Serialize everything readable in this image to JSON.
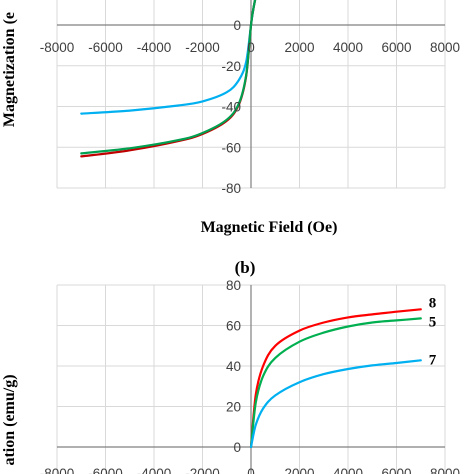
{
  "chart_data": [
    {
      "type": "line",
      "xlabel": "Magnetic Field (Oe)",
      "ylabel": "Magnetization (e",
      "xlim": [
        -8000,
        8000
      ],
      "ylim": [
        -80,
        10
      ],
      "x_ticks": [
        "-8000",
        "-6000",
        "-4000",
        "-2000",
        "0",
        "2000",
        "4000",
        "6000",
        "8000"
      ],
      "y_ticks": [
        "0",
        "-20",
        "-40",
        "-60",
        "-80"
      ],
      "y_tick_values": [
        0,
        -20,
        -40,
        -60,
        -80
      ],
      "grid": true,
      "series": [
        {
          "color": "#00b0f0",
          "x": [
            -7000,
            -5000,
            -3000,
            -2000,
            -1000,
            -500,
            -200,
            0,
            100,
            200
          ],
          "y": [
            -43.5,
            -42,
            -39.5,
            -37.5,
            -33,
            -27,
            -18,
            0,
            8,
            14
          ]
        },
        {
          "color": "#c00000",
          "x": [
            -7000,
            -5000,
            -3000,
            -2000,
            -1000,
            -500,
            -200,
            0,
            100,
            200
          ],
          "y": [
            -64.5,
            -61.5,
            -57,
            -53.5,
            -47,
            -39,
            -25,
            0,
            8,
            14
          ]
        },
        {
          "color": "#00a050",
          "x": [
            -7000,
            -5000,
            -3000,
            -2000,
            -1000,
            -500,
            -200,
            0,
            100,
            200
          ],
          "y": [
            -63,
            -60.5,
            -56.5,
            -53,
            -46.5,
            -38.5,
            -24.5,
            0,
            8,
            14
          ]
        }
      ]
    },
    {
      "type": "line",
      "title": "(b)",
      "ylabel": "ation (emu/g)",
      "xlim": [
        -8000,
        8000
      ],
      "ylim": [
        -10,
        80
      ],
      "x_ticks": [
        "-8000",
        "-6000",
        "-4000",
        "-2000",
        "0",
        "2000",
        "4000",
        "6000",
        "8000"
      ],
      "y_ticks": [
        "80",
        "60",
        "40",
        "20",
        "0"
      ],
      "y_tick_values": [
        80,
        60,
        40,
        20,
        0
      ],
      "grid": true,
      "series": [
        {
          "name": "8",
          "color": "#ff0000",
          "x": [
            0,
            200,
            500,
            1000,
            2000,
            3000,
            4000,
            5000,
            6000,
            7000
          ],
          "y": [
            0,
            26,
            40,
            50,
            57.5,
            61.5,
            64,
            65.5,
            66.8,
            68
          ]
        },
        {
          "name": "5",
          "color": "#00b050",
          "x": [
            0,
            200,
            500,
            1000,
            2000,
            3000,
            4000,
            5000,
            6000,
            7000
          ],
          "y": [
            0,
            22,
            35,
            44,
            52,
            56.5,
            59.5,
            61.5,
            62.5,
            63.5
          ]
        },
        {
          "name": "7",
          "color": "#00b0f0",
          "x": [
            0,
            200,
            500,
            1000,
            2000,
            3000,
            4000,
            5000,
            6000,
            7000
          ],
          "y": [
            0,
            11,
            19,
            25.5,
            32,
            36,
            38.5,
            40.3,
            41.5,
            42.8
          ]
        }
      ]
    }
  ]
}
